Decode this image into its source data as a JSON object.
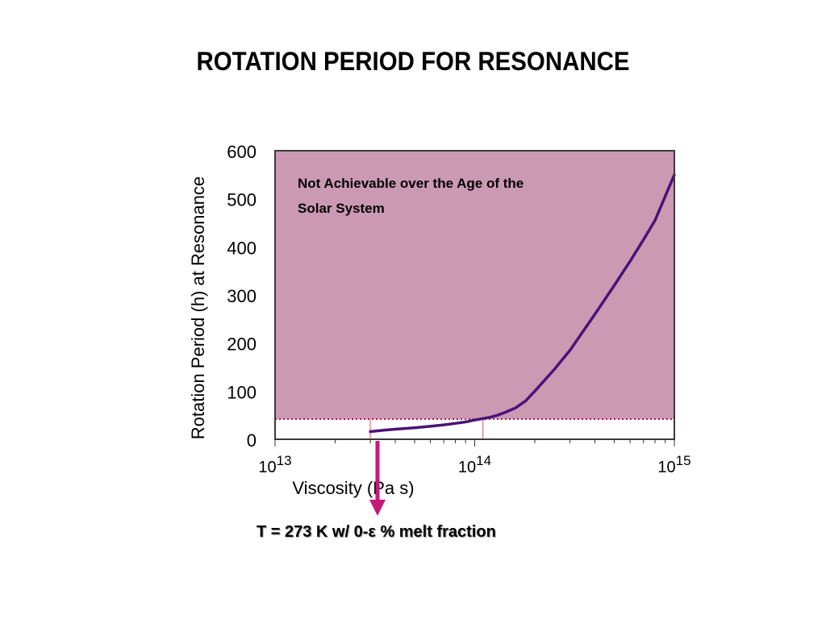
{
  "slide": {
    "title": "ROTATION PERIOD FOR RESONANCE",
    "caption": "T = 273 K w/ 0-ε % melt fraction"
  },
  "chart_data": {
    "type": "line",
    "xlabel": "Viscosity (Pa s)",
    "ylabel": "Rotation Period (h) at Resonance",
    "xscale": "log",
    "xlim": [
      10000000000000.0,
      1000000000000000.0
    ],
    "ylim": [
      0,
      600
    ],
    "x_tick_labels": [
      {
        "base": "10",
        "exp": "13"
      },
      {
        "base": "10",
        "exp": "14"
      },
      {
        "base": "10",
        "exp": "15"
      }
    ],
    "y_ticks": [
      0,
      100,
      200,
      300,
      400,
      500,
      600
    ],
    "grid": true,
    "annotation": "Not Achievable over the Age of the Solar System",
    "threshold_y": 42,
    "marker_x": 30000000000000.0,
    "colors": {
      "series": "#4b1278",
      "region": "#cc99b3",
      "threshold": "#c0105a",
      "arrow": "#c81878",
      "grid": "#a07f90"
    },
    "series": [
      {
        "x": [
          30000000000000.0,
          35000000000000.0,
          40000000000000.0,
          50000000000000.0,
          60000000000000.0,
          70000000000000.0,
          80000000000000.0,
          90000000000000.0,
          100000000000000.0,
          110000000000000.0,
          120000000000000.0,
          130000000000000.0,
          140000000000000.0,
          160000000000000.0,
          180000000000000.0,
          200000000000000.0,
          250000000000000.0,
          300000000000000.0,
          400000000000000.0,
          500000000000000.0,
          600000000000000.0,
          700000000000000.0,
          800000000000000.0,
          1000000000000000.0
        ],
        "y": [
          16,
          19,
          21,
          24,
          27,
          30,
          33,
          36,
          40,
          43,
          46,
          50,
          55,
          65,
          80,
          100,
          145,
          185,
          260,
          320,
          370,
          415,
          455,
          550
        ]
      }
    ]
  }
}
